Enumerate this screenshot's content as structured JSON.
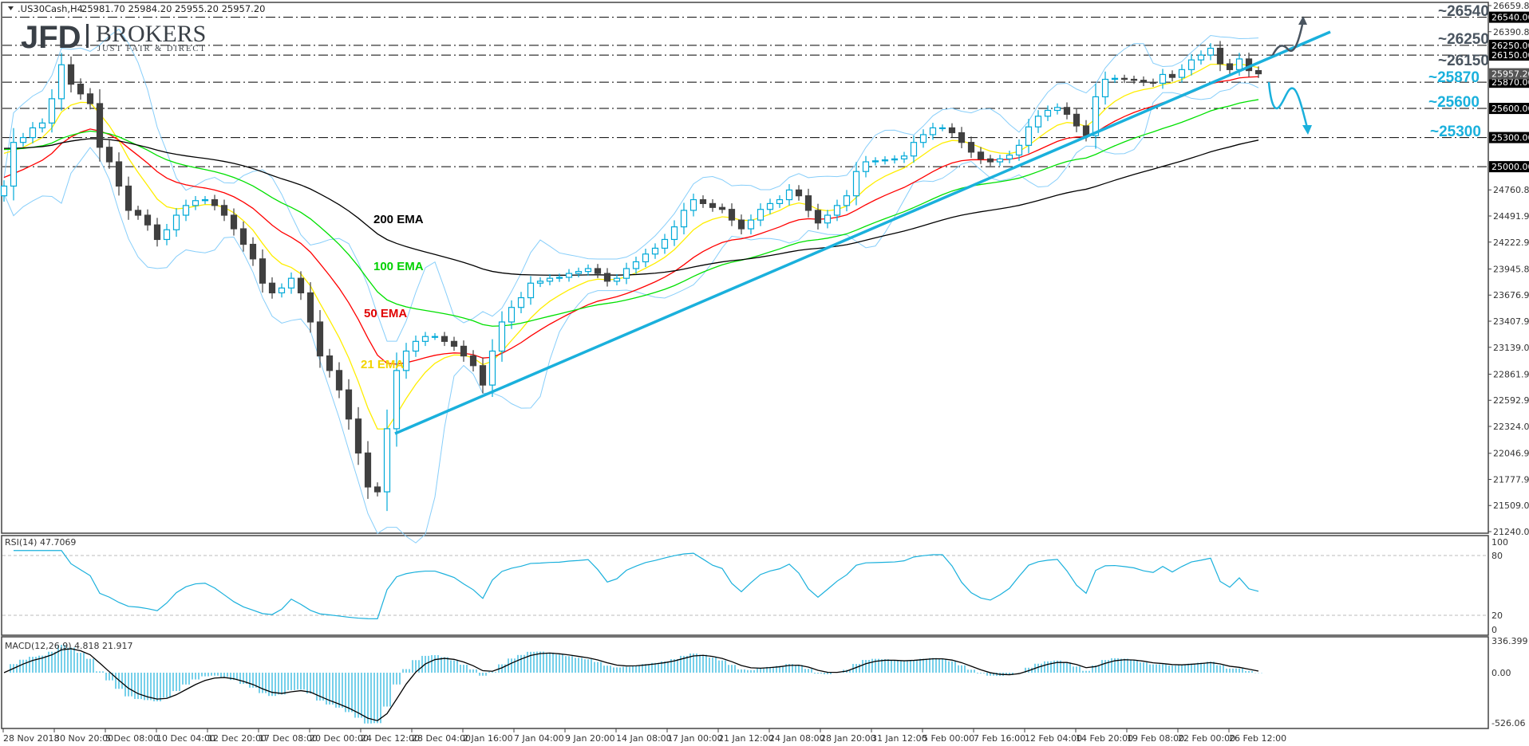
{
  "header": {
    "symbol": ".US30Cash,H4",
    "ohlc": "25981.70 25984.20 25955.20 25957.20"
  },
  "logo": {
    "brand": "JFD",
    "name": "BROKERS",
    "tagline": "JUST FAIR & DIRECT"
  },
  "colors": {
    "bull_outline": "#00a9d8",
    "bear": "#404040",
    "bollinger": "#87cefa",
    "trendline": "#1ab0dc",
    "up_scenario": "#4a5560",
    "down_scenario": "#1ab0dc"
  },
  "chart_data": {
    "type": "candlestick",
    "ylim": [
      21240.05,
      26659.8
    ],
    "closes": [
      24800,
      25250,
      25300,
      25400,
      25450,
      25700,
      26050,
      25850,
      25750,
      25650,
      25200,
      25050,
      24800,
      24550,
      24500,
      24400,
      24250,
      24350,
      24500,
      24600,
      24650,
      24660,
      24600,
      24500,
      24360,
      24200,
      24050,
      23800,
      23700,
      23750,
      23850,
      23700,
      23400,
      23050,
      22900,
      22700,
      22400,
      22050,
      21700,
      21650,
      22300,
      22900,
      23100,
      23200,
      23250,
      23250,
      23200,
      23150,
      23050,
      22950,
      22750,
      23100,
      23400,
      23550,
      23650,
      23800,
      23820,
      23850,
      23860,
      23900,
      23920,
      23950,
      23900,
      23820,
      23850,
      23950,
      24020,
      24100,
      24160,
      24250,
      24380,
      24550,
      24660,
      24620,
      24580,
      24560,
      24450,
      24360,
      24450,
      24560,
      24620,
      24660,
      24760,
      24700,
      24550,
      24420,
      24500,
      24600,
      24700,
      24950,
      25050,
      25060,
      25070,
      25080,
      25110,
      25250,
      25330,
      25400,
      25400,
      25350,
      25250,
      25150,
      25080,
      25050,
      25080,
      25120,
      25220,
      25410,
      25520,
      25580,
      25610,
      25540,
      25420,
      25320,
      25720,
      25900,
      25910,
      25900,
      25890,
      25870,
      25860,
      25950,
      25920,
      26000,
      26100,
      26150,
      26220,
      26060,
      26000,
      26110,
      25990,
      25957.2
    ],
    "first_open": 24700,
    "y_ticks": [
      "26659.80",
      "26390.85",
      "24760.85",
      "24491.90",
      "24222.95",
      "23945.85",
      "23676.90",
      "23407.95",
      "23139.00",
      "22861.90",
      "22592.95",
      "22324.00",
      "22046.90",
      "21777.95",
      "21509.00",
      "21240.05"
    ],
    "x_ticks": [
      "28 Nov 2018",
      "30 Nov 20:00",
      "5 Dec 08:00",
      "10 Dec 04:00",
      "12 Dec 20:00",
      "17 Dec 08:00",
      "20 Dec 00:00",
      "24 Dec 12:00",
      "28 Dec 04:00",
      "2 Jan 16:00",
      "7 Jan 04:00",
      "9 Jan 20:00",
      "14 Jan 08:00",
      "17 Jan 00:00",
      "21 Jan 12:00",
      "24 Jan 08:00",
      "28 Jan 20:00",
      "31 Jan 12:00",
      "5 Feb 00:00",
      "7 Feb 16:00",
      "12 Feb 04:00",
      "14 Feb 20:00",
      "19 Feb 08:00",
      "22 Feb 00:00",
      "26 Feb 12:00"
    ],
    "ema": [
      {
        "label": "21 EMA",
        "start": 25250,
        "color": "#f2d400",
        "line": "#ffee00"
      },
      {
        "label": "50 EMA",
        "start": 24900,
        "color": "#e00000",
        "line": "#ff0000"
      },
      {
        "label": "100 EMA",
        "start": 25200,
        "color": "#00d000",
        "line": "#00e000"
      },
      {
        "label": "200 EMA",
        "start": 25200,
        "color": "#000000",
        "line": "#000000"
      }
    ],
    "levels": [
      {
        "value": 26540,
        "label": "~26540",
        "tag": "26540.00",
        "color": "#4a5560"
      },
      {
        "value": 26250,
        "label": "~26250",
        "tag": "26250.00",
        "color": "#4a5560"
      },
      {
        "value": 26150,
        "label": "~26150",
        "tag": "26150.00",
        "color": "#4a5560"
      },
      {
        "value": 25870,
        "label": "~25870",
        "tag": "25870.00",
        "color": "#1ab0dc"
      },
      {
        "value": 25600,
        "label": "~25600",
        "tag": "25600.00",
        "color": "#1ab0dc"
      },
      {
        "value": 25300,
        "label": "~25300",
        "tag": "25300.00",
        "color": "#1ab0dc"
      },
      {
        "value": 25000,
        "label": "",
        "tag": "25000.00",
        "color": "#1ab0dc"
      }
    ],
    "current_price": {
      "value": 25957.2,
      "tag": "25957.20"
    },
    "trendline": {
      "from_price": 22250,
      "to_price": 26389
    },
    "rsi": {
      "label": "RSI(14) 47.7069",
      "ticks": [
        "100",
        "80",
        "20",
        "0"
      ],
      "levels": [
        80,
        20
      ],
      "range": [
        0,
        100
      ]
    },
    "macd": {
      "label": "MACD(12,26,9) 4.818 21.917",
      "ticks": [
        "336.399",
        "0.00",
        "-526.06"
      ],
      "range": [
        -526.06,
        336.399
      ]
    }
  }
}
